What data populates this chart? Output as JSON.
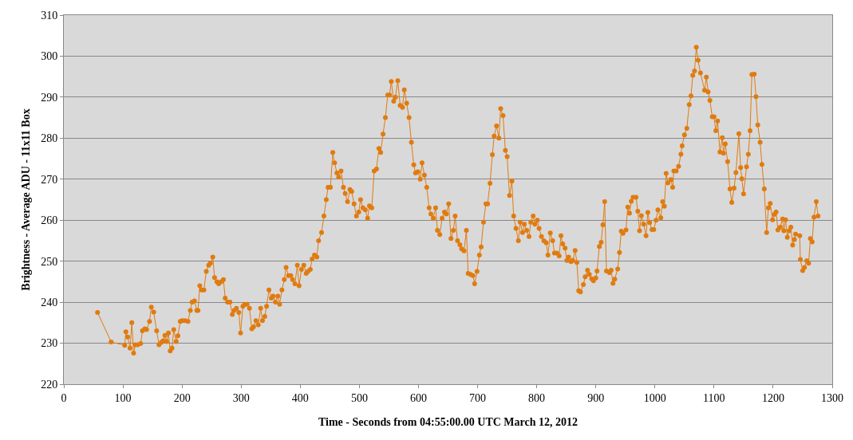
{
  "chart_data": {
    "type": "line",
    "xlabel": "Time - Seconds from 04:55:00.00 UTC March 12, 2012",
    "ylabel": "Brightness - Average ADU - 11x11 Box",
    "xlim": [
      0,
      1300
    ],
    "xticks": [
      0,
      100,
      200,
      300,
      400,
      500,
      600,
      700,
      800,
      900,
      1000,
      1100,
      1200,
      1300
    ],
    "ylim": [
      220,
      310
    ],
    "yticks": [
      220,
      230,
      240,
      250,
      260,
      270,
      280,
      290,
      300,
      310
    ],
    "grid": "y",
    "marker": "circle",
    "line_style": "solid",
    "series": [
      {
        "color": "#e07b10",
        "x": [
          57,
          80,
          103,
          105,
          108,
          112,
          115,
          118,
          121,
          125,
          130,
          133,
          137,
          140,
          145,
          148,
          152,
          157,
          161,
          165,
          168,
          171,
          174,
          177,
          180,
          183,
          186,
          190,
          193,
          197,
          200,
          205,
          210,
          214,
          217,
          221,
          225,
          227,
          230,
          233,
          237,
          241,
          245,
          248,
          252,
          255,
          259,
          262,
          266,
          270,
          273,
          277,
          281,
          285,
          288,
          292,
          296,
          299,
          303,
          306,
          310,
          314,
          318,
          321,
          325,
          329,
          333,
          336,
          340,
          343,
          347,
          351,
          354,
          358,
          362,
          365,
          369,
          373,
          376,
          380,
          384,
          387,
          391,
          395,
          398,
          402,
          406,
          410,
          413,
          417,
          420,
          424,
          428,
          431,
          436,
          440,
          444,
          447,
          451,
          455,
          458,
          462,
          465,
          469,
          473,
          476,
          480,
          484,
          487,
          491,
          495,
          499,
          502,
          506,
          510,
          514,
          517,
          521,
          525,
          529,
          533,
          536,
          540,
          544,
          548,
          551,
          554,
          558,
          561,
          565,
          569,
          573,
          576,
          580,
          584,
          588,
          592,
          595,
          599,
          603,
          606,
          610,
          614,
          618,
          621,
          625,
          629,
          632,
          636,
          640,
          644,
          647,
          651,
          655,
          659,
          662,
          666,
          670,
          673,
          677,
          681,
          684,
          688,
          692,
          695,
          699,
          703,
          706,
          710,
          714,
          717,
          721,
          725,
          728,
          732,
          736,
          739,
          743,
          747,
          750,
          754,
          758,
          761,
          765,
          769,
          772,
          776,
          779,
          783,
          787,
          790,
          794,
          797,
          801,
          804,
          808,
          812,
          816,
          819,
          823,
          827,
          830,
          834,
          838,
          841,
          844,
          848,
          851,
          854,
          858,
          861,
          865,
          868,
          871,
          874,
          879,
          882,
          886,
          889,
          893,
          896,
          900,
          902,
          906,
          909,
          912,
          915,
          918,
          923,
          926,
          929,
          932,
          937,
          940,
          943,
          946,
          951,
          954,
          957,
          960,
          963,
          968,
          971,
          974,
          977,
          981,
          985,
          988,
          991,
          995,
          998,
          1002,
          1005,
          1010,
          1013,
          1016,
          1019,
          1022,
          1027,
          1030,
          1032,
          1036,
          1040,
          1044,
          1046,
          1050,
          1054,
          1058,
          1061,
          1064,
          1067,
          1070,
          1073,
          1077,
          1084,
          1087,
          1090,
          1093,
          1097,
          1100,
          1103,
          1106,
          1110,
          1114,
          1116,
          1119,
          1123,
          1127,
          1130,
          1134,
          1137,
          1142,
          1145,
          1147,
          1150,
          1155,
          1158,
          1161,
          1164,
          1168,
          1171,
          1174,
          1178,
          1181,
          1185,
          1189,
          1192,
          1195,
          1199,
          1202,
          1205,
          1208,
          1212,
          1216,
          1218,
          1221,
          1224,
          1227,
          1230,
          1233,
          1236,
          1238,
          1245,
          1246,
          1250,
          1253,
          1257,
          1260,
          1263,
          1266,
          1269,
          1273,
          1276
        ],
        "values": [
          237.5,
          230.3,
          229.5,
          232.8,
          231.5,
          228.8,
          235,
          227.6,
          229.6,
          229.6,
          229.9,
          233,
          233.5,
          233.3,
          235.3,
          238.8,
          237.6,
          233,
          229.6,
          230.2,
          230.6,
          231.9,
          230.4,
          232.5,
          228.1,
          228.8,
          233.3,
          230.4,
          231.8,
          235.3,
          235.5,
          235.5,
          235.3,
          238,
          240,
          240.3,
          238,
          238,
          244,
          243,
          243,
          247.5,
          249,
          249.5,
          251,
          246,
          245,
          244.5,
          245,
          245.5,
          241,
          240,
          240,
          237,
          238,
          238.5,
          237.5,
          232.5,
          239,
          239.5,
          239.5,
          238.5,
          233.5,
          234,
          235.5,
          234.5,
          238.5,
          235.5,
          236.5,
          239,
          243,
          241,
          241.5,
          240,
          241.5,
          239.5,
          243,
          245.5,
          248.5,
          246.5,
          246.5,
          245.5,
          244.5,
          249,
          244,
          248,
          249,
          247,
          247.5,
          248,
          250.5,
          251.5,
          251,
          255,
          257,
          261,
          265,
          268,
          268,
          276.5,
          274,
          271.5,
          270.5,
          272,
          268,
          266.5,
          264.5,
          267.5,
          267,
          264,
          261,
          262,
          265,
          263,
          262.5,
          260.5,
          263.5,
          263,
          272,
          272.5,
          277.5,
          276.5,
          281,
          285,
          290.5,
          290.5,
          293.8,
          289,
          290,
          294,
          288,
          287.5,
          291.8,
          288.5,
          285,
          279,
          273.5,
          271.5,
          271.8,
          270,
          274,
          271,
          268,
          263,
          261.5,
          260.5,
          263,
          257.5,
          256.5,
          260.5,
          262,
          261.5,
          264,
          255.5,
          257.5,
          261,
          255,
          254,
          253,
          252.5,
          257.5,
          247,
          246.8,
          246.5,
          244.5,
          247.5,
          251.5,
          253.5,
          259.5,
          264,
          264,
          269,
          276,
          280.5,
          283,
          280,
          287.2,
          285.5,
          277,
          275.5,
          266,
          269.5,
          261,
          258,
          255,
          259.5,
          257,
          259,
          257.5,
          256,
          259.5,
          261,
          259,
          260,
          258,
          256,
          255,
          254.5,
          251.5,
          256.9,
          255,
          252,
          252,
          251.3,
          256.2,
          254.2,
          253.2,
          250.2,
          251,
          249.9,
          250.2,
          252.6,
          249.7,
          242.8,
          242.5,
          244.3,
          246.2,
          247.8,
          246.8,
          245.7,
          245.2,
          245.9,
          247.6,
          253.6,
          254.6,
          258.9,
          264.5,
          247.6,
          247.2,
          247.8,
          244.6,
          245.6,
          248.1,
          252.1,
          257.3,
          256.8,
          257.6,
          263.2,
          261.7,
          264.6,
          265.6,
          265.6,
          262.2,
          257.4,
          261.1,
          259,
          256.2,
          261.9,
          259.4,
          257.7,
          257.7,
          260,
          262.5,
          260.6,
          264.5,
          263.4,
          271.4,
          269.1,
          269.9,
          268,
          272,
          272,
          273.1,
          276.1,
          278.1,
          280.8,
          282.4,
          288.2,
          290.3,
          295.3,
          296.4,
          302.2,
          299,
          295.9,
          291.7,
          294.9,
          291.3,
          289.2,
          285.2,
          285.2,
          281.8,
          284.2,
          276.6,
          280.1,
          276.3,
          278.6,
          274.3,
          267.6,
          264.3,
          267.8,
          271.6,
          281.1,
          272.8,
          270.1,
          266.4,
          273,
          276.1,
          281.8,
          295.5,
          295.6,
          290.1,
          283.2,
          279,
          273.6,
          267.6,
          257,
          263,
          264.1,
          260.1,
          261.4,
          262,
          257.6,
          258.3,
          260.3,
          257.4,
          260.1,
          255.8,
          257.4,
          258.3,
          253.9,
          255.3,
          256.6,
          256.2,
          250.4,
          247.7,
          248.5,
          250.1,
          249.5,
          255.5,
          254.7,
          260.7,
          264.5,
          261
        ]
      }
    ]
  }
}
